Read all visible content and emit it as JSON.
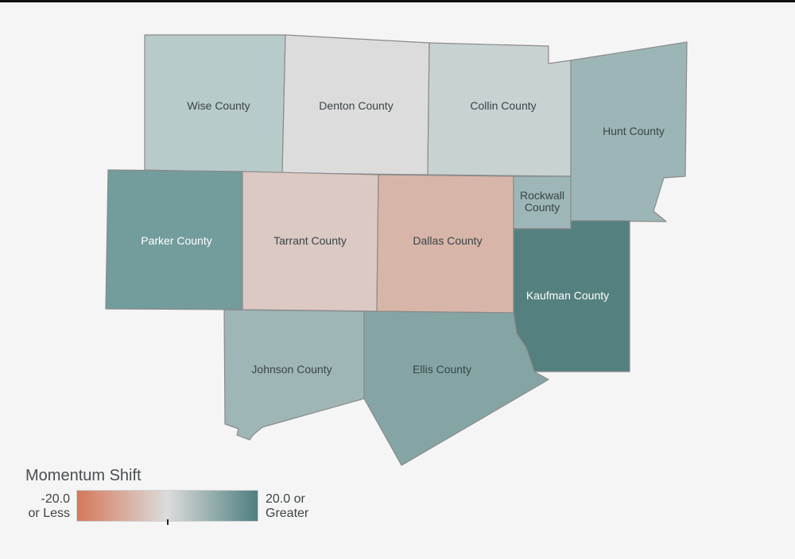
{
  "map": {
    "counties": [
      {
        "id": "wise",
        "name": "Wise County",
        "fill": "#b8cbcb",
        "text_color": "#3a4446"
      },
      {
        "id": "denton",
        "name": "Denton County",
        "fill": "#dcdcdc",
        "text_color": "#3a4446"
      },
      {
        "id": "collin",
        "name": "Collin County",
        "fill": "#c8d2d3",
        "text_color": "#3a4446"
      },
      {
        "id": "hunt",
        "name": "Hunt County",
        "fill": "#9cb6b7",
        "text_color": "#3a4446"
      },
      {
        "id": "parker",
        "name": "Parker County",
        "fill": "#739c9c",
        "text_color": "#ffffff"
      },
      {
        "id": "tarrant",
        "name": "Tarrant County",
        "fill": "#dcc9c4",
        "text_color": "#3a4446"
      },
      {
        "id": "dallas",
        "name": "Dallas County",
        "fill": "#d8b5a9",
        "text_color": "#3a4446"
      },
      {
        "id": "rockwall",
        "name_lines": [
          "Rockwall",
          "County"
        ],
        "fill": "#9db6b7",
        "text_color": "#3a4446"
      },
      {
        "id": "kaufman",
        "name": "Kaufman County",
        "fill": "#54807f",
        "text_color": "#ffffff"
      },
      {
        "id": "johnson",
        "name": "Johnson County",
        "fill": "#9fb6b7",
        "text_color": "#3a4446"
      },
      {
        "id": "ellis",
        "name": "Ellis County",
        "fill": "#85a5a5",
        "text_color": "#3a4446"
      }
    ]
  },
  "legend": {
    "title": "Momentum Shift",
    "min_label_lines": [
      "-20.0",
      "or Less"
    ],
    "max_label_lines": [
      "20.0 or",
      "Greater"
    ],
    "colors": {
      "low": "#d4785a",
      "mid": "#dcdcdc",
      "high": "#4f7f80"
    },
    "marker_value": 0.5
  }
}
